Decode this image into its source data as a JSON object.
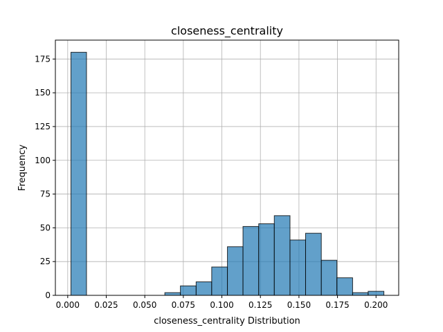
{
  "chart_data": {
    "type": "bar",
    "title": "closeness_centrality",
    "xlabel": "closeness_centrality Distribution",
    "ylabel": "Frequency",
    "xlim": [
      -0.008,
      0.2147
    ],
    "ylim": [
      0,
      189
    ],
    "xticks": [
      0.0,
      0.025,
      0.05,
      0.075,
      0.1,
      0.125,
      0.15,
      0.175,
      0.2
    ],
    "xtick_labels": [
      "0.000",
      "0.025",
      "0.050",
      "0.075",
      "0.100",
      "0.125",
      "0.150",
      "0.175",
      "0.200"
    ],
    "yticks": [
      0,
      25,
      50,
      75,
      100,
      125,
      150,
      175
    ],
    "ytick_labels": [
      "0",
      "25",
      "50",
      "75",
      "100",
      "125",
      "150",
      "175"
    ],
    "grid": true,
    "bar_color": "#1f77b4",
    "bar_alpha": 0.7,
    "edge_color": "#000000",
    "bins": [
      {
        "x0": 0.0021,
        "x1": 0.0122,
        "count": 180
      },
      {
        "x0": 0.0122,
        "x1": 0.0224,
        "count": 0
      },
      {
        "x0": 0.0224,
        "x1": 0.0325,
        "count": 0
      },
      {
        "x0": 0.0325,
        "x1": 0.0427,
        "count": 0
      },
      {
        "x0": 0.0427,
        "x1": 0.0528,
        "count": 0
      },
      {
        "x0": 0.0528,
        "x1": 0.063,
        "count": 0
      },
      {
        "x0": 0.063,
        "x1": 0.0731,
        "count": 2
      },
      {
        "x0": 0.0731,
        "x1": 0.0833,
        "count": 7
      },
      {
        "x0": 0.0833,
        "x1": 0.0934,
        "count": 10
      },
      {
        "x0": 0.0934,
        "x1": 0.1036,
        "count": 21
      },
      {
        "x0": 0.1036,
        "x1": 0.1137,
        "count": 36
      },
      {
        "x0": 0.1137,
        "x1": 0.1239,
        "count": 51
      },
      {
        "x0": 0.1239,
        "x1": 0.134,
        "count": 53
      },
      {
        "x0": 0.134,
        "x1": 0.1442,
        "count": 59
      },
      {
        "x0": 0.1442,
        "x1": 0.1543,
        "count": 41
      },
      {
        "x0": 0.1543,
        "x1": 0.1645,
        "count": 46
      },
      {
        "x0": 0.1645,
        "x1": 0.1746,
        "count": 26
      },
      {
        "x0": 0.1746,
        "x1": 0.1848,
        "count": 13
      },
      {
        "x0": 0.1848,
        "x1": 0.1949,
        "count": 2
      },
      {
        "x0": 0.1949,
        "x1": 0.2051,
        "count": 3
      }
    ]
  }
}
